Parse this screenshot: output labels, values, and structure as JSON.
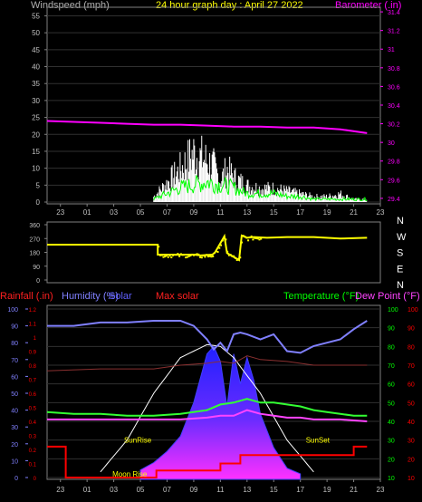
{
  "colors": {
    "background": "#000000",
    "frame": "#808080",
    "windspeed_label": "#b0b0b0",
    "title": "#ffff00",
    "barometer": "#ff00ff",
    "wind_gust": "#ffffff",
    "wind_avg": "#00ff00",
    "wind_dir": "#ffff00",
    "rainfall": "#ff0000",
    "humidity": "#8080ff",
    "solar": "#6060ff",
    "max_solar": "#ffffff",
    "max_solar_label": "#ff2020",
    "temperature": "#33ff33",
    "dewpoint": "#ff44ff",
    "temp_axis": "#00ff00",
    "right_axis": "#ff0000",
    "sun_label": "#ffff00",
    "moon_label": "#ffff00"
  },
  "header": {
    "windspeed_label": "Windspeed (mph)",
    "title": "24 hour graph day : April 27 2022",
    "barometer_label": "Barometer (.in)"
  },
  "bottom_header": {
    "rainfall_label": "Rainfall (.in)",
    "humidity_label": "Humidity (%)",
    "solar_label": "Solar",
    "max_solar_label": "Max solar",
    "temperature_label": "Temperature (°F)",
    "dewpoint_label": "Dew Point (°F)"
  },
  "annotations": {
    "sunrise": "SunRise",
    "sunset": "SunSet",
    "moonrise": "Moon Rise"
  },
  "chart_data": [
    {
      "type": "line",
      "name": "wind_barometer",
      "x_ticks": [
        "23",
        "01",
        "03",
        "05",
        "07",
        "09",
        "11",
        "13",
        "15",
        "17",
        "19",
        "21",
        "23"
      ],
      "y_left": {
        "label": "Windspeed (mph)",
        "range": [
          0,
          57
        ],
        "ticks": [
          0,
          5,
          10,
          15,
          20,
          25,
          30,
          35,
          40,
          45,
          50,
          55
        ]
      },
      "y_right": {
        "label": "Barometer (.in)",
        "range": [
          29.36,
          31.43
        ],
        "ticks": [
          29.4,
          29.6,
          29.8,
          30,
          30.2,
          30.4,
          30.6,
          30.8,
          31,
          31.2,
          31.4
        ]
      },
      "series": [
        {
          "name": "Barometer",
          "axis": "right",
          "x": [
            0,
            2,
            4,
            6,
            8,
            10,
            12,
            14,
            16,
            18,
            20,
            22,
            24
          ],
          "values": [
            30.23,
            30.22,
            30.21,
            30.2,
            30.19,
            30.19,
            30.18,
            30.17,
            30.17,
            30.16,
            30.16,
            30.14,
            30.1
          ]
        }
      ],
      "wind_gust_envelope": {
        "x": [
          8,
          9,
          10,
          11,
          12,
          12.5,
          13,
          13.5,
          14,
          15,
          16,
          17,
          18,
          19,
          20,
          21,
          22,
          23,
          24
        ],
        "values": [
          2,
          7,
          12,
          18,
          15,
          13,
          8,
          12,
          9,
          6,
          5,
          5,
          4,
          3,
          2,
          2,
          3,
          1,
          1
        ]
      },
      "wind_avg_envelope": {
        "x": [
          8,
          9,
          10,
          11,
          12,
          13,
          14,
          15,
          16,
          17,
          18,
          19,
          20,
          21,
          22,
          23,
          24
        ],
        "values": [
          1,
          3,
          5,
          6,
          7,
          6,
          5,
          3,
          3,
          3,
          2,
          2,
          1,
          1,
          1,
          1,
          1
        ]
      }
    },
    {
      "type": "line",
      "name": "wind_direction",
      "y_ticks": [
        0,
        90,
        180,
        270,
        360
      ],
      "compass_labels": [
        "N",
        "W",
        "S",
        "E",
        "N"
      ],
      "x": [
        0,
        8.3,
        8.3,
        11.0,
        11.5,
        12.4,
        12.6,
        13.3,
        13.5,
        14.4,
        14.6,
        15.0,
        15.5,
        16.5,
        18.0,
        20.0,
        22.0,
        24.0
      ],
      "values": [
        230,
        230,
        165,
        165,
        160,
        165,
        180,
        285,
        175,
        130,
        290,
        275,
        280,
        275,
        280,
        280,
        270,
        275
      ]
    },
    {
      "type": "area",
      "name": "temp_humidity_solar",
      "y_left_rain": {
        "label": "Rainfall (.in)",
        "range": [
          0,
          1.2
        ],
        "ticks": [
          0,
          0.1,
          0.2,
          0.3,
          0.4,
          0.5,
          0.6,
          0.7,
          0.8,
          0.9,
          1,
          1.1,
          1.2
        ]
      },
      "y_left_humidity": {
        "label": "Humidity (%)",
        "range": [
          0,
          100
        ],
        "ticks": [
          0,
          10,
          20,
          30,
          40,
          50,
          60,
          70,
          80,
          90,
          100
        ]
      },
      "y_temp": {
        "label": "Temperature (°F)",
        "range": [
          10,
          100
        ],
        "ticks": [
          10,
          20,
          30,
          40,
          50,
          60,
          70,
          80,
          90,
          100
        ]
      },
      "series": [
        {
          "name": "Humidity",
          "axis": "humidity",
          "x": [
            0,
            2,
            4,
            6,
            8,
            10,
            11,
            12,
            12.5,
            13,
            13.5,
            14,
            14.5,
            15,
            16,
            17,
            18,
            19,
            20,
            21,
            22,
            23,
            24
          ],
          "values": [
            90,
            90,
            92,
            92,
            93,
            93,
            90,
            82,
            76,
            80,
            75,
            85,
            86,
            85,
            82,
            85,
            75,
            74,
            78,
            80,
            82,
            88,
            93
          ]
        },
        {
          "name": "Temperature",
          "axis": "temp",
          "x": [
            0,
            2,
            4,
            6,
            8,
            10,
            12,
            13,
            14,
            15,
            16,
            17,
            18,
            19,
            20,
            21,
            22,
            23,
            24
          ],
          "values": [
            45,
            44,
            44,
            43,
            43,
            44,
            46,
            49,
            50,
            52,
            50,
            50,
            49,
            48,
            46,
            45,
            44,
            43,
            43
          ]
        },
        {
          "name": "Dew Point",
          "axis": "temp",
          "x": [
            0,
            4,
            8,
            10,
            12,
            13,
            14,
            15,
            16,
            17,
            18,
            19,
            20,
            22,
            24
          ],
          "values": [
            41,
            41,
            41,
            41,
            42,
            43,
            43,
            46,
            44,
            43,
            42,
            42,
            41,
            41,
            40
          ]
        },
        {
          "name": "Max solar",
          "axis": "temp",
          "x": [
            4,
            6,
            8,
            10,
            12,
            13,
            14,
            16,
            18,
            20
          ],
          "values": [
            13,
            30,
            55,
            74,
            81,
            80,
            74,
            55,
            30,
            13
          ]
        },
        {
          "name": "Rainfall",
          "axis": "rain",
          "x": [
            0,
            1.4,
            1.4,
            8.2,
            8.2,
            13,
            13,
            14.5,
            14.5,
            23,
            23,
            24
          ],
          "values": [
            0.22,
            0.22,
            0.0,
            0.0,
            0.05,
            0.05,
            0.1,
            0.1,
            0.16,
            0.16,
            0.22,
            0.22
          ]
        },
        {
          "name": "Solar",
          "axis": "temp",
          "x": [
            7.0,
            8,
            9,
            10,
            11,
            12,
            12.5,
            13,
            13.5,
            14,
            14.5,
            15,
            15.5,
            16,
            17,
            18,
            19
          ],
          "values": [
            14,
            18,
            24,
            32,
            50,
            76,
            80,
            72,
            48,
            76,
            60,
            74,
            62,
            44,
            26,
            15,
            12
          ]
        }
      ],
      "brown_line": {
        "x": [
          0,
          4,
          8,
          10,
          12,
          13,
          14,
          15,
          16,
          18,
          20,
          24
        ],
        "values": [
          67,
          68,
          68,
          70,
          71,
          72,
          71,
          75,
          73,
          72,
          70,
          70
        ]
      }
    }
  ],
  "x_ticks_bottom": [
    "23",
    "01",
    "03",
    "05",
    "07",
    "09",
    "11",
    "13",
    "15",
    "17",
    "19",
    "21",
    "23"
  ]
}
